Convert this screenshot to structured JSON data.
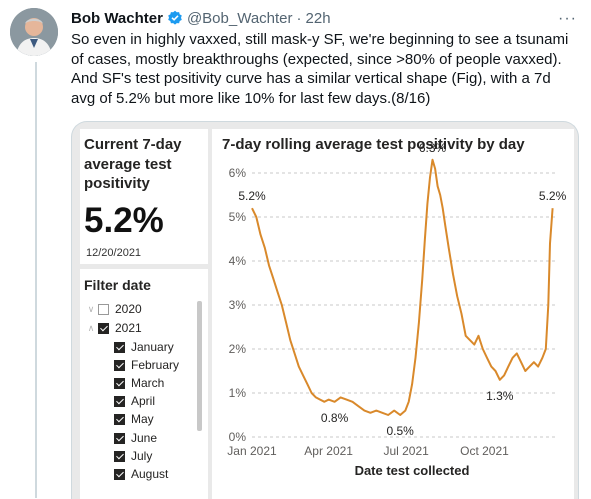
{
  "tweet": {
    "author_name": "Bob Wachter",
    "handle": "@Bob_Wachter",
    "separator": "·",
    "time": "22h",
    "more_label": "···",
    "text": "So even in highly vaxxed, still mask-y SF, we're beginning to see a tsunami of cases, mostly breakthroughs (expected, since >80% of people vaxxed). And SF's test positivity curve has a similar vertical shape (Fig), with a 7d avg of 5.2% but more like 10% for last few days.(8/16)"
  },
  "dashboard": {
    "kpi_title": "Current 7-day average test positivity",
    "kpi_value": "5.2%",
    "kpi_date": "12/20/2021",
    "filter_title": "Filter date",
    "filter_items": [
      {
        "label": "2020",
        "checked": false,
        "chevron": "expand"
      },
      {
        "label": "2021",
        "checked": true,
        "chevron": "collapse"
      },
      {
        "label": "January",
        "checked": true
      },
      {
        "label": "February",
        "checked": true
      },
      {
        "label": "March",
        "checked": true
      },
      {
        "label": "April",
        "checked": true
      },
      {
        "label": "May",
        "checked": true
      },
      {
        "label": "June",
        "checked": true
      },
      {
        "label": "July",
        "checked": true
      },
      {
        "label": "August",
        "checked": true
      }
    ]
  },
  "chart_data": {
    "type": "line",
    "title": "7-day rolling average test positivity by day",
    "xlabel": "Date test collected",
    "ylabel": "",
    "ylim": [
      0,
      6
    ],
    "y_ticks": [
      "0%",
      "1%",
      "2%",
      "3%",
      "4%",
      "5%",
      "6%"
    ],
    "x_ticks": [
      {
        "label": "Jan 2021",
        "date": "2021-01-01"
      },
      {
        "label": "Apr 2021",
        "date": "2021-04-01"
      },
      {
        "label": "Jul 2021",
        "date": "2021-07-01"
      },
      {
        "label": "Oct 2021",
        "date": "2021-10-01"
      }
    ],
    "grid": true,
    "color": "#d9892b",
    "series": [
      {
        "x": [
          "2021-01-01",
          "2021-01-06",
          "2021-01-11",
          "2021-01-16",
          "2021-01-21",
          "2021-01-26",
          "2021-01-31",
          "2021-02-05",
          "2021-02-10",
          "2021-02-15",
          "2021-02-20",
          "2021-02-25",
          "2021-03-02",
          "2021-03-07",
          "2021-03-12",
          "2021-03-17",
          "2021-03-22",
          "2021-03-27",
          "2021-04-01",
          "2021-04-08",
          "2021-04-15",
          "2021-04-22",
          "2021-04-29",
          "2021-05-06",
          "2021-05-13",
          "2021-05-20",
          "2021-05-27",
          "2021-06-03",
          "2021-06-10",
          "2021-06-17",
          "2021-06-24",
          "2021-06-30",
          "2021-07-04",
          "2021-07-08",
          "2021-07-12",
          "2021-07-16",
          "2021-07-20",
          "2021-07-23",
          "2021-07-26",
          "2021-07-29",
          "2021-08-01",
          "2021-08-04",
          "2021-08-07",
          "2021-08-10",
          "2021-08-13",
          "2021-08-16",
          "2021-08-20",
          "2021-08-25",
          "2021-08-30",
          "2021-09-04",
          "2021-09-09",
          "2021-09-14",
          "2021-09-19",
          "2021-09-24",
          "2021-09-29",
          "2021-10-04",
          "2021-10-09",
          "2021-10-14",
          "2021-10-19",
          "2021-10-24",
          "2021-10-29",
          "2021-11-03",
          "2021-11-08",
          "2021-11-13",
          "2021-11-18",
          "2021-11-23",
          "2021-11-28",
          "2021-12-03",
          "2021-12-08",
          "2021-12-12",
          "2021-12-15",
          "2021-12-17",
          "2021-12-20"
        ],
        "values": [
          5.2,
          5.0,
          4.6,
          4.3,
          3.9,
          3.6,
          3.3,
          3.0,
          2.6,
          2.2,
          1.9,
          1.6,
          1.4,
          1.2,
          1.0,
          0.9,
          0.85,
          0.8,
          0.85,
          0.8,
          0.9,
          0.85,
          0.8,
          0.7,
          0.6,
          0.55,
          0.6,
          0.55,
          0.5,
          0.6,
          0.5,
          0.6,
          0.8,
          1.2,
          1.8,
          2.6,
          3.6,
          4.5,
          5.3,
          5.9,
          6.3,
          6.1,
          5.7,
          5.5,
          5.2,
          4.8,
          4.3,
          3.7,
          3.2,
          2.8,
          2.3,
          2.2,
          2.1,
          2.3,
          2.0,
          1.8,
          1.6,
          1.5,
          1.3,
          1.4,
          1.6,
          1.8,
          1.9,
          1.7,
          1.5,
          1.6,
          1.7,
          1.6,
          1.8,
          2.0,
          3.0,
          4.4,
          5.2
        ],
        "annotations": [
          {
            "label": "5.2%",
            "x": "2021-01-01",
            "y": 5.2
          },
          {
            "label": "0.8%",
            "x": "2021-04-08",
            "y": 0.8
          },
          {
            "label": "0.5%",
            "x": "2021-06-24",
            "y": 0.5
          },
          {
            "label": "6.3%",
            "x": "2021-08-01",
            "y": 6.3
          },
          {
            "label": "1.3%",
            "x": "2021-10-19",
            "y": 1.3
          },
          {
            "label": "5.2%",
            "x": "2021-12-20",
            "y": 5.2
          }
        ]
      }
    ]
  }
}
